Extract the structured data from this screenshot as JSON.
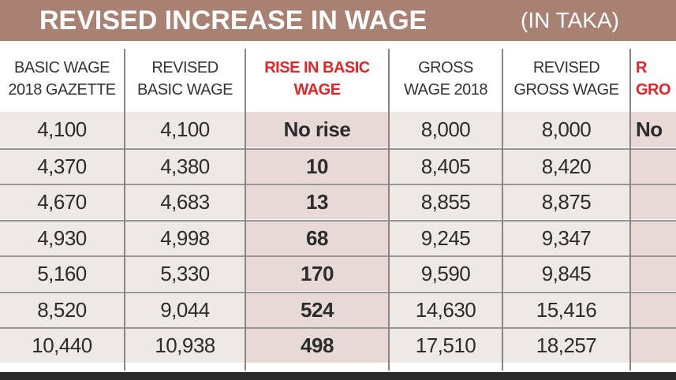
{
  "title": "REVISED INCREASE IN WAGE",
  "unit": "(IN TAKA)",
  "colors": {
    "banner": "#a98173",
    "highlight_header": "#e0262b",
    "row_bg": "#efe9e6",
    "rise_bg": "#e7dad6"
  },
  "chart_data": {
    "type": "table",
    "title": "REVISED INCREASE IN WAGE",
    "subtitle": "(IN TAKA)",
    "columns": [
      {
        "header": [
          "BASIC WAGE",
          "2018 GAZETTE"
        ],
        "values": [
          "4,100",
          "4,370",
          "4,670",
          "4,930",
          "5,160",
          "8,520",
          "10,440"
        ]
      },
      {
        "header": [
          "REVISED",
          "BASIC WAGE"
        ],
        "values": [
          "4,100",
          "4,380",
          "4,683",
          "4,998",
          "5,330",
          "9,044",
          "10,938"
        ]
      },
      {
        "header": [
          "RISE IN BASIC",
          "WAGE"
        ],
        "highlight": true,
        "values": [
          "No rise",
          "10",
          "13",
          "68",
          "170",
          "524",
          "498"
        ]
      },
      {
        "header": [
          "GROSS",
          "WAGE 2018"
        ],
        "values": [
          "8,000",
          "8,405",
          "8,855",
          "9,245",
          "9,590",
          "14,630",
          "17,510"
        ]
      },
      {
        "header": [
          "REVISED",
          "GROSS WAGE"
        ],
        "values": [
          "8,000",
          "8,420",
          "8,875",
          "9,347",
          "9,845",
          "15,416",
          "18,257"
        ]
      },
      {
        "header": [
          "R",
          "GRO"
        ],
        "highlight": true,
        "values": [
          "No",
          "",
          "",
          "",
          "",
          "",
          ""
        ]
      }
    ]
  }
}
